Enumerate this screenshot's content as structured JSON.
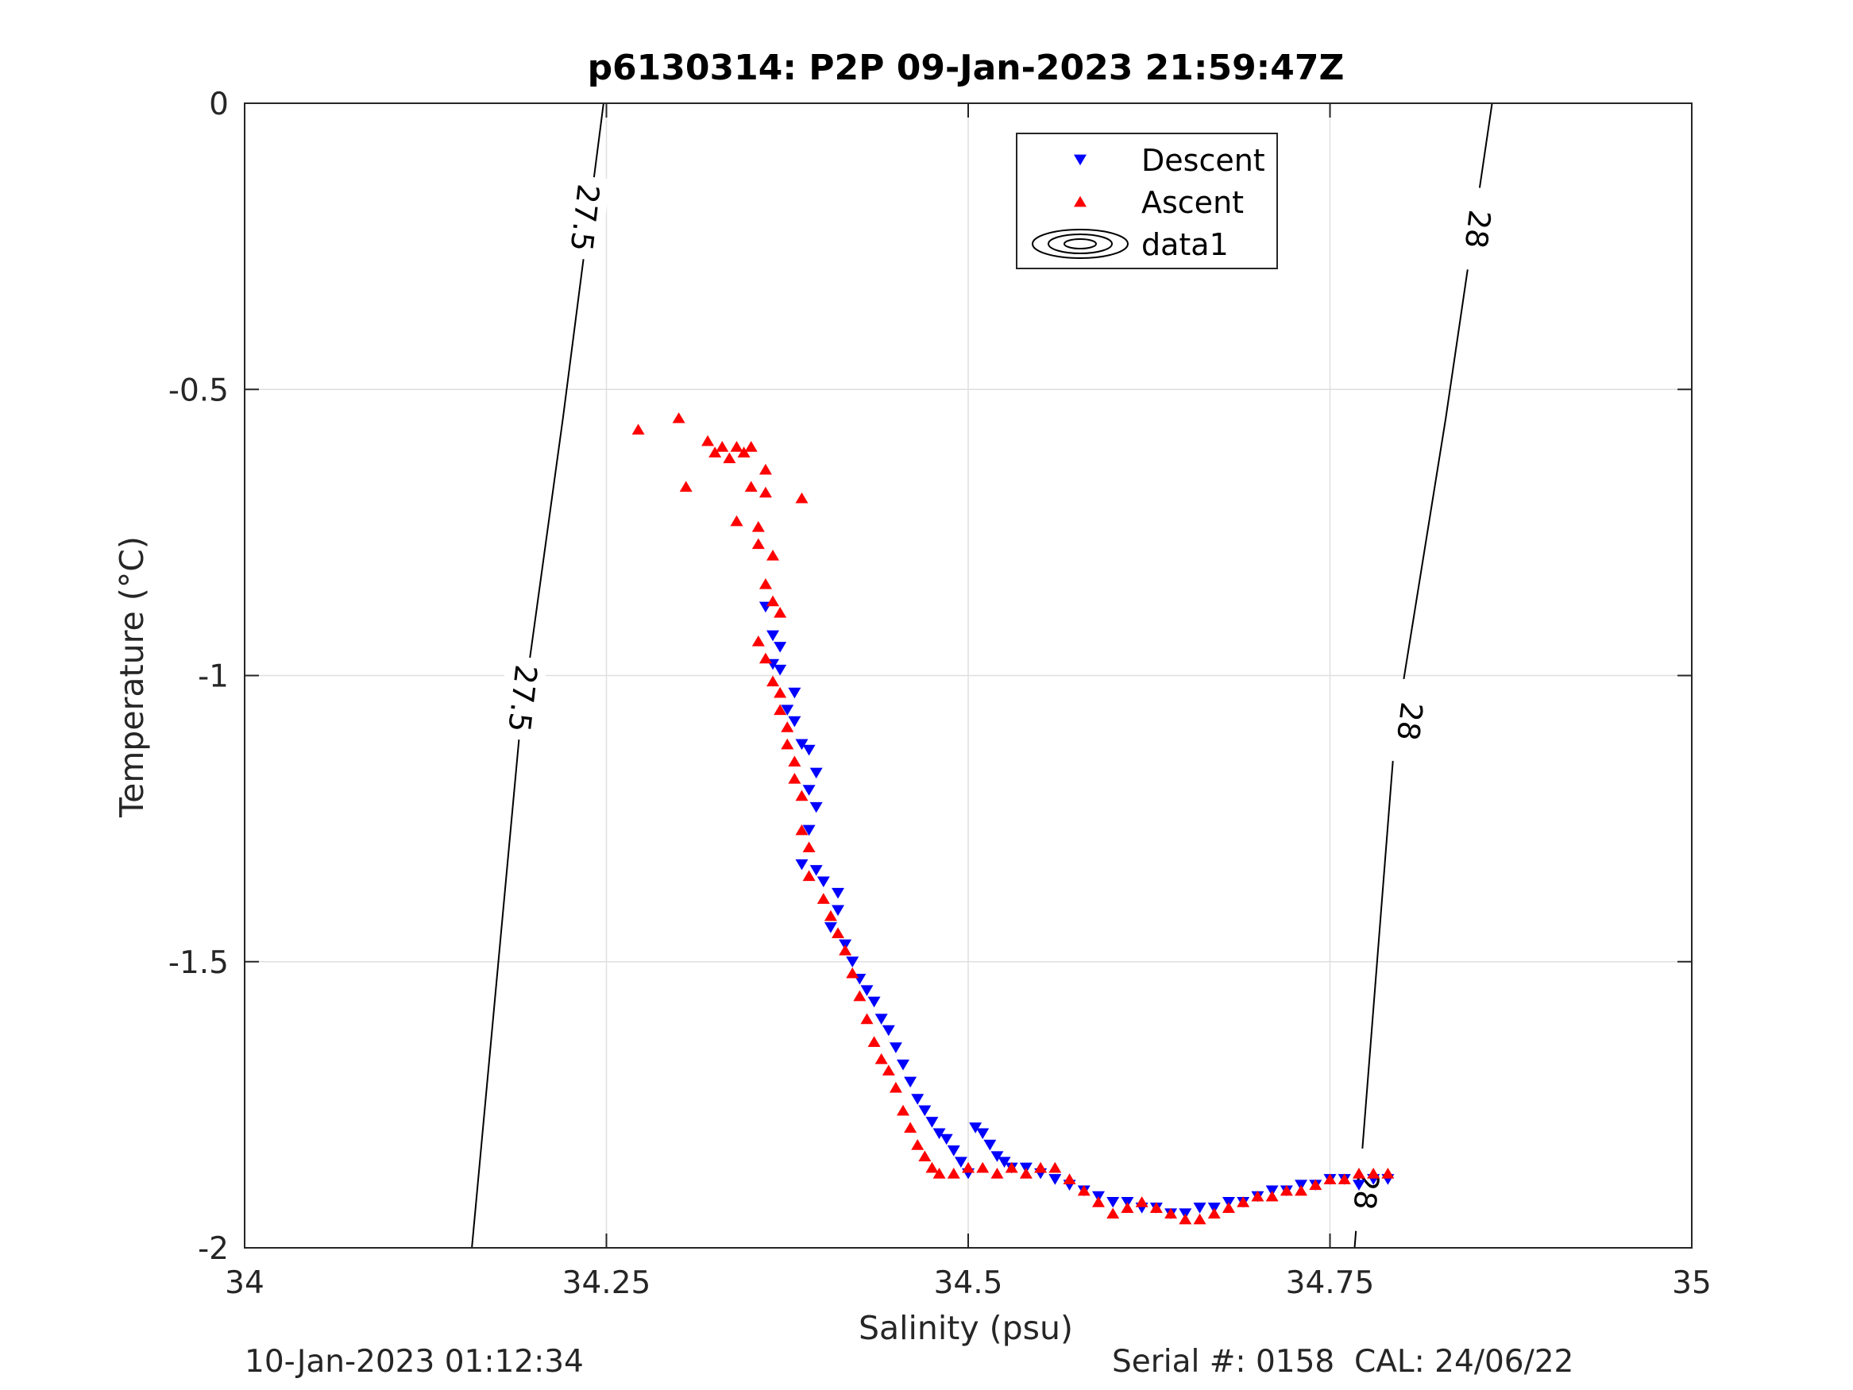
{
  "chart_data": {
    "type": "scatter",
    "title": "p6130314: P2P 09-Jan-2023 21:59:47Z",
    "xlabel": "Salinity (psu)",
    "ylabel": "Temperature (°C)",
    "xlim": [
      34,
      35
    ],
    "ylim": [
      -2,
      0
    ],
    "x_ticks": [
      34,
      34.25,
      34.5,
      34.75,
      35
    ],
    "x_tick_labels": [
      "34",
      "34.25",
      "34.5",
      "34.75",
      "35"
    ],
    "y_ticks": [
      0,
      -0.5,
      -1,
      -1.5,
      -2
    ],
    "y_tick_labels": [
      "0",
      "-0.5",
      "-1",
      "-1.5",
      "-2"
    ],
    "grid": true,
    "legend_position": "top-center",
    "legend": [
      {
        "name": "Descent",
        "marker": "triangle-down",
        "color": "#0000ff"
      },
      {
        "name": "Ascent",
        "marker": "triangle-up",
        "color": "#ff0000"
      },
      {
        "name": "data1",
        "marker": "contour-ellipses",
        "color": "#000000"
      }
    ],
    "contours": [
      {
        "label": "27.5",
        "points": [
          [
            34.157,
            -2.0
          ],
          [
            34.19,
            -1.1
          ],
          [
            34.22,
            -0.55
          ],
          [
            34.248,
            0.0
          ]
        ],
        "label_positions": [
          [
            34.235,
            -0.2
          ],
          [
            34.192,
            -1.04
          ]
        ]
      },
      {
        "label": "28",
        "points": [
          [
            34.767,
            -2.0
          ],
          [
            34.795,
            -1.1
          ],
          [
            34.83,
            -0.55
          ],
          [
            34.862,
            0.0
          ]
        ],
        "label_positions": [
          [
            34.852,
            -0.22
          ],
          [
            34.805,
            -1.08
          ],
          [
            34.775,
            -1.9
          ]
        ]
      }
    ],
    "series": [
      {
        "name": "Descent",
        "marker": "triangle-down",
        "color": "#0000ff",
        "x": [
          34.36,
          34.365,
          34.37,
          34.365,
          34.37,
          34.38,
          34.375,
          34.38,
          34.385,
          34.39,
          34.395,
          34.39,
          34.395,
          34.39,
          34.385,
          34.395,
          34.4,
          34.41,
          34.41,
          34.405,
          34.415,
          34.42,
          34.425,
          34.43,
          34.435,
          34.44,
          34.445,
          34.45,
          34.455,
          34.46,
          34.465,
          34.47,
          34.475,
          34.48,
          34.485,
          34.49,
          34.495,
          34.5,
          34.505,
          34.51,
          34.515,
          34.52,
          34.525,
          34.53,
          34.54,
          34.55,
          34.56,
          34.57,
          34.58,
          34.59,
          34.6,
          34.61,
          34.62,
          34.63,
          34.64,
          34.65,
          34.66,
          34.67,
          34.68,
          34.69,
          34.7,
          34.71,
          34.72,
          34.73,
          34.74,
          34.75,
          34.76,
          34.77,
          34.78,
          34.79
        ],
        "y": [
          -0.88,
          -0.93,
          -0.95,
          -0.98,
          -0.99,
          -1.03,
          -1.06,
          -1.08,
          -1.12,
          -1.13,
          -1.17,
          -1.2,
          -1.23,
          -1.27,
          -1.33,
          -1.34,
          -1.36,
          -1.38,
          -1.41,
          -1.44,
          -1.47,
          -1.5,
          -1.53,
          -1.55,
          -1.57,
          -1.6,
          -1.62,
          -1.65,
          -1.68,
          -1.71,
          -1.74,
          -1.76,
          -1.78,
          -1.8,
          -1.81,
          -1.83,
          -1.85,
          -1.87,
          -1.79,
          -1.8,
          -1.82,
          -1.84,
          -1.85,
          -1.86,
          -1.86,
          -1.87,
          -1.88,
          -1.89,
          -1.9,
          -1.91,
          -1.92,
          -1.92,
          -1.93,
          -1.93,
          -1.94,
          -1.94,
          -1.93,
          -1.93,
          -1.92,
          -1.92,
          -1.91,
          -1.9,
          -1.9,
          -1.89,
          -1.89,
          -1.88,
          -1.88,
          -1.89,
          -1.88,
          -1.88
        ]
      },
      {
        "name": "Ascent",
        "marker": "triangle-up",
        "color": "#ff0000",
        "x": [
          34.272,
          34.3,
          34.305,
          34.32,
          34.325,
          34.33,
          34.335,
          34.34,
          34.345,
          34.35,
          34.35,
          34.36,
          34.385,
          34.34,
          34.355,
          34.355,
          34.36,
          34.365,
          34.36,
          34.365,
          34.37,
          34.355,
          34.36,
          34.365,
          34.37,
          34.37,
          34.375,
          34.375,
          34.38,
          34.38,
          34.385,
          34.385,
          34.39,
          34.39,
          34.4,
          34.405,
          34.41,
          34.415,
          34.42,
          34.425,
          34.43,
          34.435,
          34.44,
          34.445,
          34.45,
          34.455,
          34.46,
          34.465,
          34.47,
          34.475,
          34.48,
          34.49,
          34.5,
          34.51,
          34.52,
          34.53,
          34.54,
          34.55,
          34.56,
          34.57,
          34.58,
          34.59,
          34.6,
          34.61,
          34.62,
          34.63,
          34.64,
          34.65,
          34.66,
          34.67,
          34.68,
          34.69,
          34.7,
          34.71,
          34.72,
          34.73,
          34.74,
          34.75,
          34.76,
          34.77,
          34.78,
          34.79
        ],
        "y": [
          -0.57,
          -0.55,
          -0.67,
          -0.59,
          -0.61,
          -0.6,
          -0.62,
          -0.6,
          -0.61,
          -0.6,
          -0.67,
          -0.64,
          -0.69,
          -0.73,
          -0.74,
          -0.77,
          -0.68,
          -0.79,
          -0.84,
          -0.87,
          -0.89,
          -0.94,
          -0.97,
          -1.01,
          -1.03,
          -1.06,
          -1.09,
          -1.12,
          -1.15,
          -1.18,
          -1.21,
          -1.27,
          -1.3,
          -1.35,
          -1.39,
          -1.42,
          -1.45,
          -1.48,
          -1.52,
          -1.56,
          -1.6,
          -1.64,
          -1.67,
          -1.69,
          -1.72,
          -1.76,
          -1.79,
          -1.82,
          -1.84,
          -1.86,
          -1.87,
          -1.87,
          -1.86,
          -1.86,
          -1.87,
          -1.86,
          -1.87,
          -1.86,
          -1.86,
          -1.88,
          -1.9,
          -1.92,
          -1.94,
          -1.93,
          -1.92,
          -1.93,
          -1.94,
          -1.95,
          -1.95,
          -1.94,
          -1.93,
          -1.92,
          -1.91,
          -1.91,
          -1.9,
          -1.9,
          -1.89,
          -1.88,
          -1.88,
          -1.87,
          -1.87,
          -1.87
        ]
      }
    ]
  },
  "footer": {
    "left_text": "10-Jan-2023 01:12:34",
    "right_text": "Serial #: 0158  CAL: 24/06/22"
  }
}
